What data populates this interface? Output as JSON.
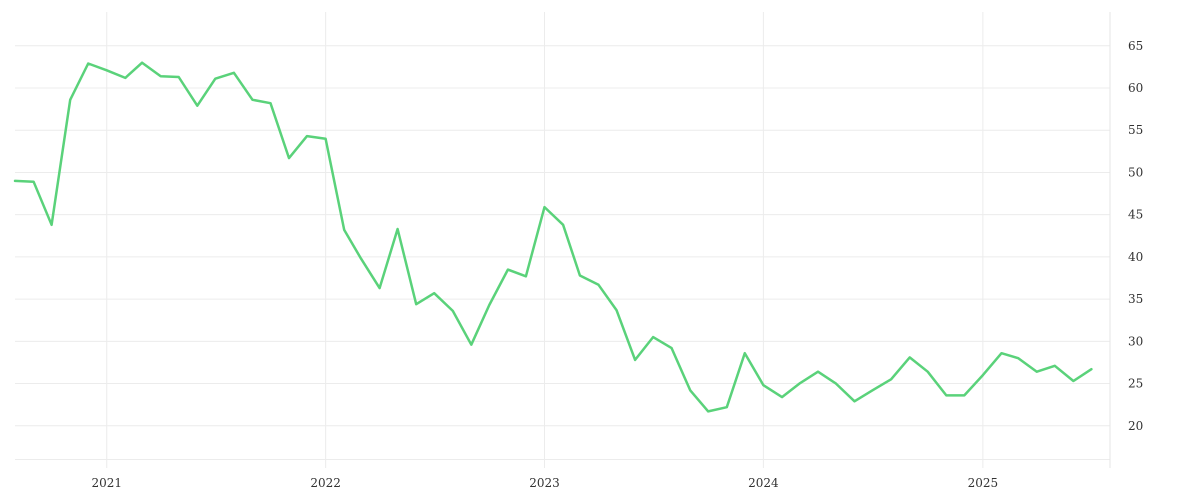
{
  "chart_data": {
    "type": "line",
    "title": "",
    "xlabel": "",
    "ylabel": "",
    "grid": true,
    "legend": "none",
    "x_ticks": [
      "2021",
      "2022",
      "2023",
      "2024",
      "2025"
    ],
    "y_ticks": [
      20,
      25,
      30,
      35,
      40,
      45,
      50,
      55,
      60,
      65
    ],
    "ylim": [
      15,
      69
    ],
    "xlim": [
      "2020-08-01",
      "2025-08-01"
    ],
    "color": "#5ad27a",
    "series": [
      {
        "x": [
          "2020-08",
          "2020-09",
          "2020-10",
          "2020-11",
          "2020-12",
          "2021-01",
          "2021-02",
          "2021-03",
          "2021-04",
          "2021-05",
          "2021-06",
          "2021-07",
          "2021-08",
          "2021-09",
          "2021-10",
          "2021-11",
          "2021-12",
          "2022-01",
          "2022-02",
          "2022-03",
          "2022-04",
          "2022-05",
          "2022-06",
          "2022-07",
          "2022-08",
          "2022-09",
          "2022-10",
          "2022-11",
          "2022-12",
          "2023-01",
          "2023-02",
          "2023-03",
          "2023-04",
          "2023-05",
          "2023-06",
          "2023-07",
          "2023-08",
          "2023-09",
          "2023-10",
          "2023-11",
          "2023-12",
          "2024-01",
          "2024-02",
          "2024-03",
          "2024-04",
          "2024-05",
          "2024-06",
          "2024-07",
          "2024-08",
          "2024-09",
          "2024-10",
          "2024-11",
          "2024-12",
          "2025-01",
          "2025-02",
          "2025-03",
          "2025-04",
          "2025-05",
          "2025-06",
          "2025-07"
        ],
        "y": [
          49.0,
          48.9,
          43.8,
          58.6,
          62.9,
          62.1,
          61.2,
          63.0,
          61.4,
          61.3,
          57.9,
          61.1,
          61.8,
          58.6,
          58.2,
          51.7,
          54.3,
          54.0,
          43.2,
          39.8,
          36.3,
          43.3,
          34.4,
          35.7,
          33.6,
          29.6,
          34.3,
          38.5,
          37.7,
          45.9,
          43.8,
          37.8,
          36.7,
          33.7,
          27.8,
          30.5,
          29.2,
          24.2,
          21.7,
          22.2,
          28.6,
          24.8,
          23.4,
          25.0,
          26.4,
          25.0,
          22.9,
          24.2,
          25.5,
          28.1,
          26.4,
          23.6,
          23.6,
          26.0,
          28.6,
          28.0,
          26.4,
          27.1,
          25.3,
          26.7
        ]
      }
    ]
  }
}
